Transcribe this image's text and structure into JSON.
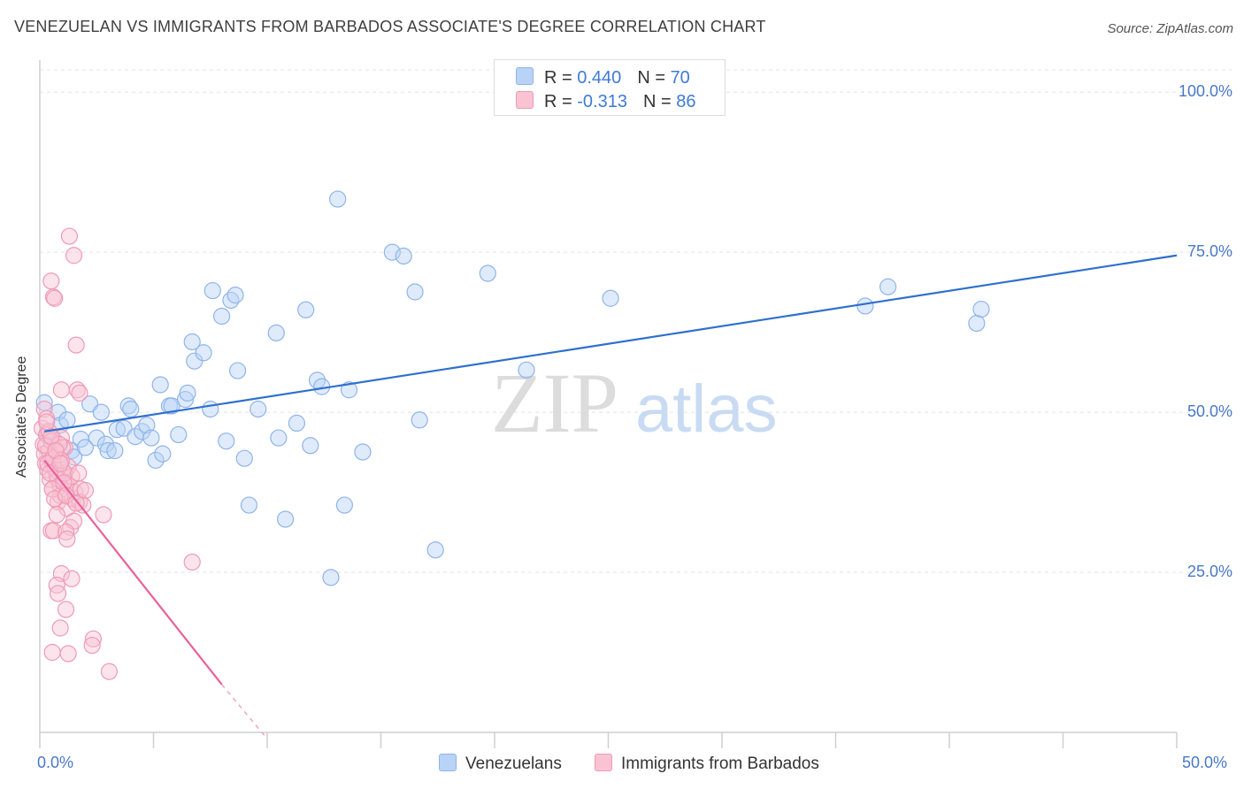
{
  "header": {
    "title": "VENEZUELAN VS IMMIGRANTS FROM BARBADOS ASSOCIATE'S DEGREE CORRELATION CHART",
    "source": "Source: ZipAtlas.com"
  },
  "watermark": {
    "zip": "ZIP",
    "atlas": "atlas"
  },
  "legend_top": {
    "rows": [
      {
        "r_label": "R = ",
        "r_value": "0.440",
        "n_label": "N = ",
        "n_value": "70",
        "color": "#b9d3f6"
      },
      {
        "r_label": "R = ",
        "r_value": "-0.313",
        "n_label": "N = ",
        "n_value": "86",
        "color": "#f9c3d4"
      }
    ]
  },
  "legend_bottom": {
    "items": [
      {
        "label": "Venezuelans",
        "color": "#b9d3f6"
      },
      {
        "label": "Immigrants from Barbados",
        "color": "#f9c3d4"
      }
    ]
  },
  "chart_data": {
    "type": "scatter",
    "title": "VENEZUELAN VS IMMIGRANTS FROM BARBADOS ASSOCIATE'S DEGREE CORRELATION CHART",
    "xlabel": "",
    "ylabel": "Associate's Degree",
    "xlim": [
      0,
      50
    ],
    "ylim": [
      0,
      105
    ],
    "x_tick_labels": [
      "0.0%",
      "50.0%"
    ],
    "y_ticks": [
      {
        "value": 100,
        "label": "100.0%"
      },
      {
        "value": 75,
        "label": "75.0%"
      },
      {
        "value": 50,
        "label": "50.0%"
      },
      {
        "value": 25,
        "label": "25.0%"
      }
    ],
    "grid": true,
    "series": [
      {
        "name": "Venezuelans",
        "color": "#8fb4ea",
        "fill": "rgba(185,211,246,0.45)",
        "trend": {
          "x": [
            0.2,
            50
          ],
          "y": [
            47.0,
            74.5
          ],
          "color": "#2f6fce"
        },
        "points": [
          [
            0.2,
            51.5
          ],
          [
            0.3,
            46.5
          ],
          [
            0.5,
            45.5
          ],
          [
            0.8,
            50
          ],
          [
            0.9,
            48
          ],
          [
            1.2,
            48.8
          ],
          [
            1.4,
            44
          ],
          [
            1.5,
            43
          ],
          [
            1.8,
            45.8
          ],
          [
            2.0,
            44.5
          ],
          [
            2.2,
            51.3
          ],
          [
            2.5,
            46
          ],
          [
            2.7,
            50
          ],
          [
            2.9,
            45
          ],
          [
            3.0,
            44
          ],
          [
            3.3,
            44
          ],
          [
            3.4,
            47.3
          ],
          [
            3.7,
            47.5
          ],
          [
            3.9,
            51
          ],
          [
            4.0,
            50.5
          ],
          [
            4.2,
            46.2
          ],
          [
            4.5,
            47
          ],
          [
            4.7,
            48
          ],
          [
            4.9,
            46
          ],
          [
            5.1,
            42.5
          ],
          [
            5.3,
            54.3
          ],
          [
            5.4,
            43.5
          ],
          [
            5.7,
            51
          ],
          [
            5.8,
            51
          ],
          [
            6.1,
            46.5
          ],
          [
            6.4,
            52
          ],
          [
            6.5,
            53
          ],
          [
            6.7,
            61
          ],
          [
            6.8,
            58
          ],
          [
            7.2,
            59.3
          ],
          [
            7.5,
            50.5
          ],
          [
            7.6,
            69
          ],
          [
            8.0,
            65
          ],
          [
            8.2,
            45.5
          ],
          [
            8.4,
            67.5
          ],
          [
            8.6,
            68.3
          ],
          [
            8.7,
            56.5
          ],
          [
            9.0,
            42.8
          ],
          [
            9.2,
            35.5
          ],
          [
            9.6,
            50.5
          ],
          [
            10.4,
            62.4
          ],
          [
            10.5,
            46
          ],
          [
            10.8,
            33.3
          ],
          [
            11.3,
            48.3
          ],
          [
            11.7,
            66
          ],
          [
            11.9,
            44.8
          ],
          [
            12.2,
            55
          ],
          [
            12.4,
            54
          ],
          [
            12.8,
            24.2
          ],
          [
            13.1,
            83.3
          ],
          [
            13.4,
            35.5
          ],
          [
            13.6,
            53.5
          ],
          [
            14.2,
            43.8
          ],
          [
            15.5,
            75
          ],
          [
            16.0,
            74.4
          ],
          [
            16.5,
            68.8
          ],
          [
            16.7,
            48.8
          ],
          [
            17.4,
            28.5
          ],
          [
            19.7,
            71.7
          ],
          [
            21.4,
            56.6
          ],
          [
            25.1,
            67.8
          ],
          [
            36.3,
            66.6
          ],
          [
            37.3,
            69.6
          ],
          [
            41.2,
            63.9
          ],
          [
            41.4,
            66.1
          ]
        ]
      },
      {
        "name": "Immigrants from Barbados",
        "color": "#ef9ab5",
        "fill": "rgba(249,195,212,0.45)",
        "trend": {
          "x": [
            0.2,
            8.0
          ],
          "y": [
            42.5,
            7.5
          ],
          "color": "#e9609a"
        },
        "trend_dashed": {
          "x": [
            8.0,
            10.0
          ],
          "y": [
            7.5,
            -1.0
          ]
        },
        "points": [
          [
            0.1,
            47.5
          ],
          [
            0.15,
            45
          ],
          [
            0.2,
            43.5
          ],
          [
            0.25,
            42
          ],
          [
            0.3,
            46.5
          ],
          [
            0.35,
            41
          ],
          [
            0.4,
            44
          ],
          [
            0.45,
            39.5
          ],
          [
            0.5,
            42.5
          ],
          [
            0.55,
            38
          ],
          [
            0.6,
            45.8
          ],
          [
            0.65,
            41.5
          ],
          [
            0.7,
            44
          ],
          [
            0.75,
            40
          ],
          [
            0.8,
            36
          ],
          [
            0.85,
            42.8
          ],
          [
            0.9,
            38.5
          ],
          [
            0.95,
            46
          ],
          [
            1.0,
            41
          ],
          [
            1.05,
            37.5
          ],
          [
            1.1,
            44.5
          ],
          [
            1.15,
            39
          ],
          [
            1.2,
            35
          ],
          [
            1.25,
            41.5
          ],
          [
            1.3,
            38.5
          ],
          [
            1.35,
            32
          ],
          [
            1.4,
            40
          ],
          [
            1.45,
            36.5
          ],
          [
            1.5,
            33
          ],
          [
            1.55,
            37.5
          ],
          [
            0.2,
            50.5
          ],
          [
            0.3,
            49
          ],
          [
            0.4,
            47
          ],
          [
            0.5,
            45.5
          ],
          [
            0.6,
            43
          ],
          [
            0.7,
            41
          ],
          [
            0.8,
            39.5
          ],
          [
            0.9,
            37
          ],
          [
            1.0,
            44.5
          ],
          [
            1.1,
            40.5
          ],
          [
            0.25,
            44.8
          ],
          [
            0.35,
            42
          ],
          [
            0.45,
            40.5
          ],
          [
            0.55,
            38
          ],
          [
            0.65,
            36.5
          ],
          [
            0.75,
            34
          ],
          [
            0.85,
            45
          ],
          [
            0.95,
            42.5
          ],
          [
            1.05,
            39
          ],
          [
            1.15,
            37
          ],
          [
            1.8,
            38
          ],
          [
            1.7,
            40.5
          ],
          [
            1.75,
            36
          ],
          [
            1.9,
            35.5
          ],
          [
            1.6,
            35.8
          ],
          [
            2.0,
            37.8
          ],
          [
            0.3,
            48.5
          ],
          [
            0.5,
            46.2
          ],
          [
            0.7,
            44
          ],
          [
            0.9,
            42
          ],
          [
            0.5,
            70.5
          ],
          [
            0.6,
            68
          ],
          [
            0.65,
            67.8
          ],
          [
            1.3,
            77.5
          ],
          [
            1.5,
            74.5
          ],
          [
            1.6,
            60.5
          ],
          [
            0.95,
            53.5
          ],
          [
            1.65,
            53.5
          ],
          [
            1.75,
            53
          ],
          [
            0.5,
            31.5
          ],
          [
            0.6,
            31.5
          ],
          [
            1.15,
            31.3
          ],
          [
            1.2,
            30.2
          ],
          [
            2.8,
            34
          ],
          [
            0.95,
            24.8
          ],
          [
            1.4,
            24
          ],
          [
            0.75,
            23
          ],
          [
            0.8,
            21.7
          ],
          [
            1.15,
            19.2
          ],
          [
            0.9,
            16.3
          ],
          [
            6.7,
            26.6
          ],
          [
            0.55,
            12.5
          ],
          [
            1.25,
            12.3
          ],
          [
            2.35,
            14.6
          ],
          [
            2.3,
            13.6
          ],
          [
            3.05,
            9.5
          ]
        ]
      }
    ]
  }
}
